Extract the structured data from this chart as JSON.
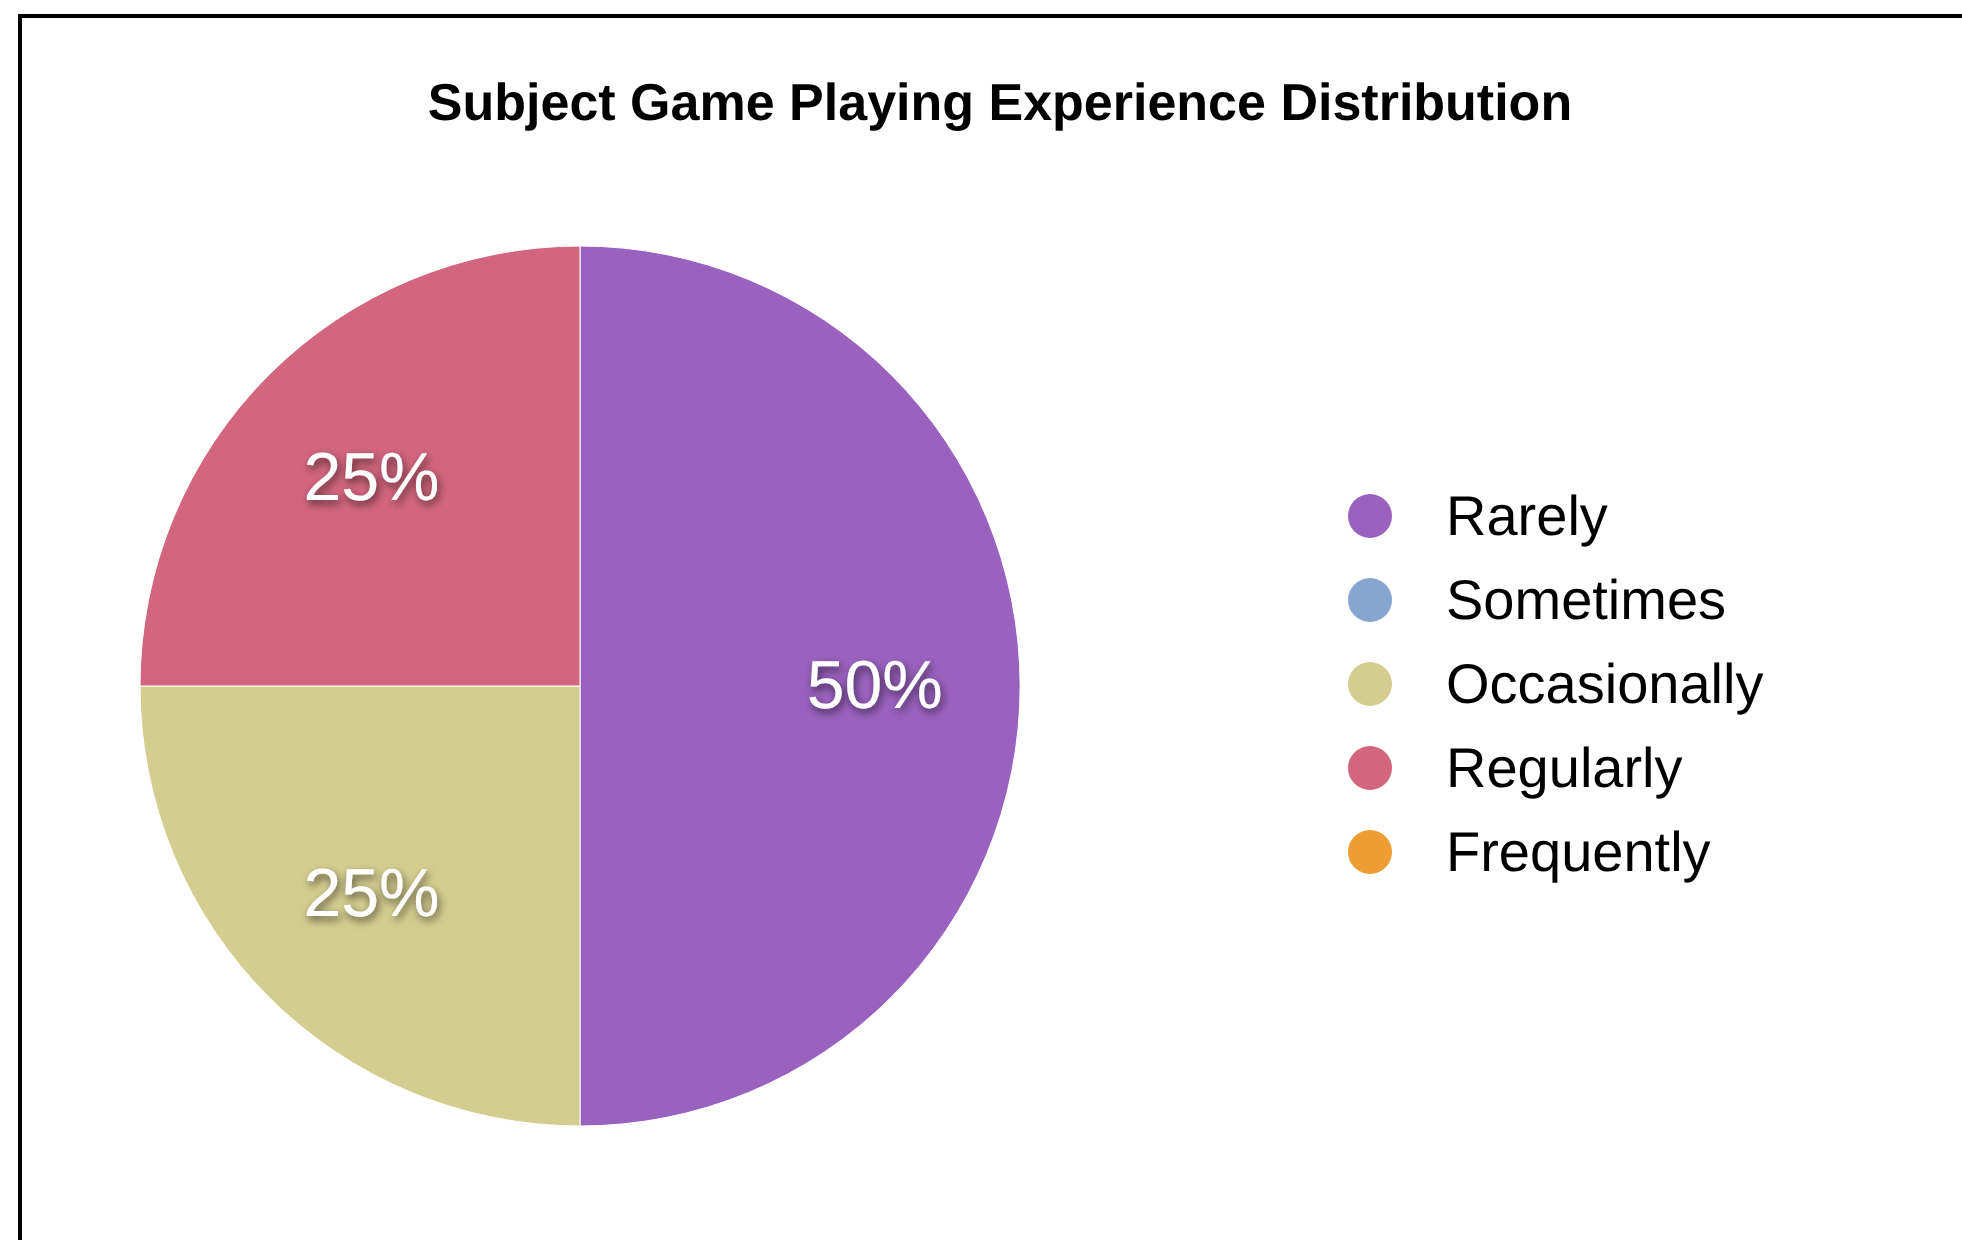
{
  "chart_data": {
    "type": "pie",
    "title": "Subject Game Playing Experience Distribution",
    "categories": [
      "Rarely",
      "Sometimes",
      "Occasionally",
      "Regularly",
      "Frequently"
    ],
    "values": [
      50,
      0,
      25,
      25,
      0
    ],
    "colors": [
      "#9a62bf",
      "#86a6cf",
      "#d3cd90",
      "#d2667e",
      "#ee9c34"
    ],
    "value_labels": [
      "50%",
      null,
      "25%",
      "25%",
      null
    ],
    "legend": "right"
  }
}
